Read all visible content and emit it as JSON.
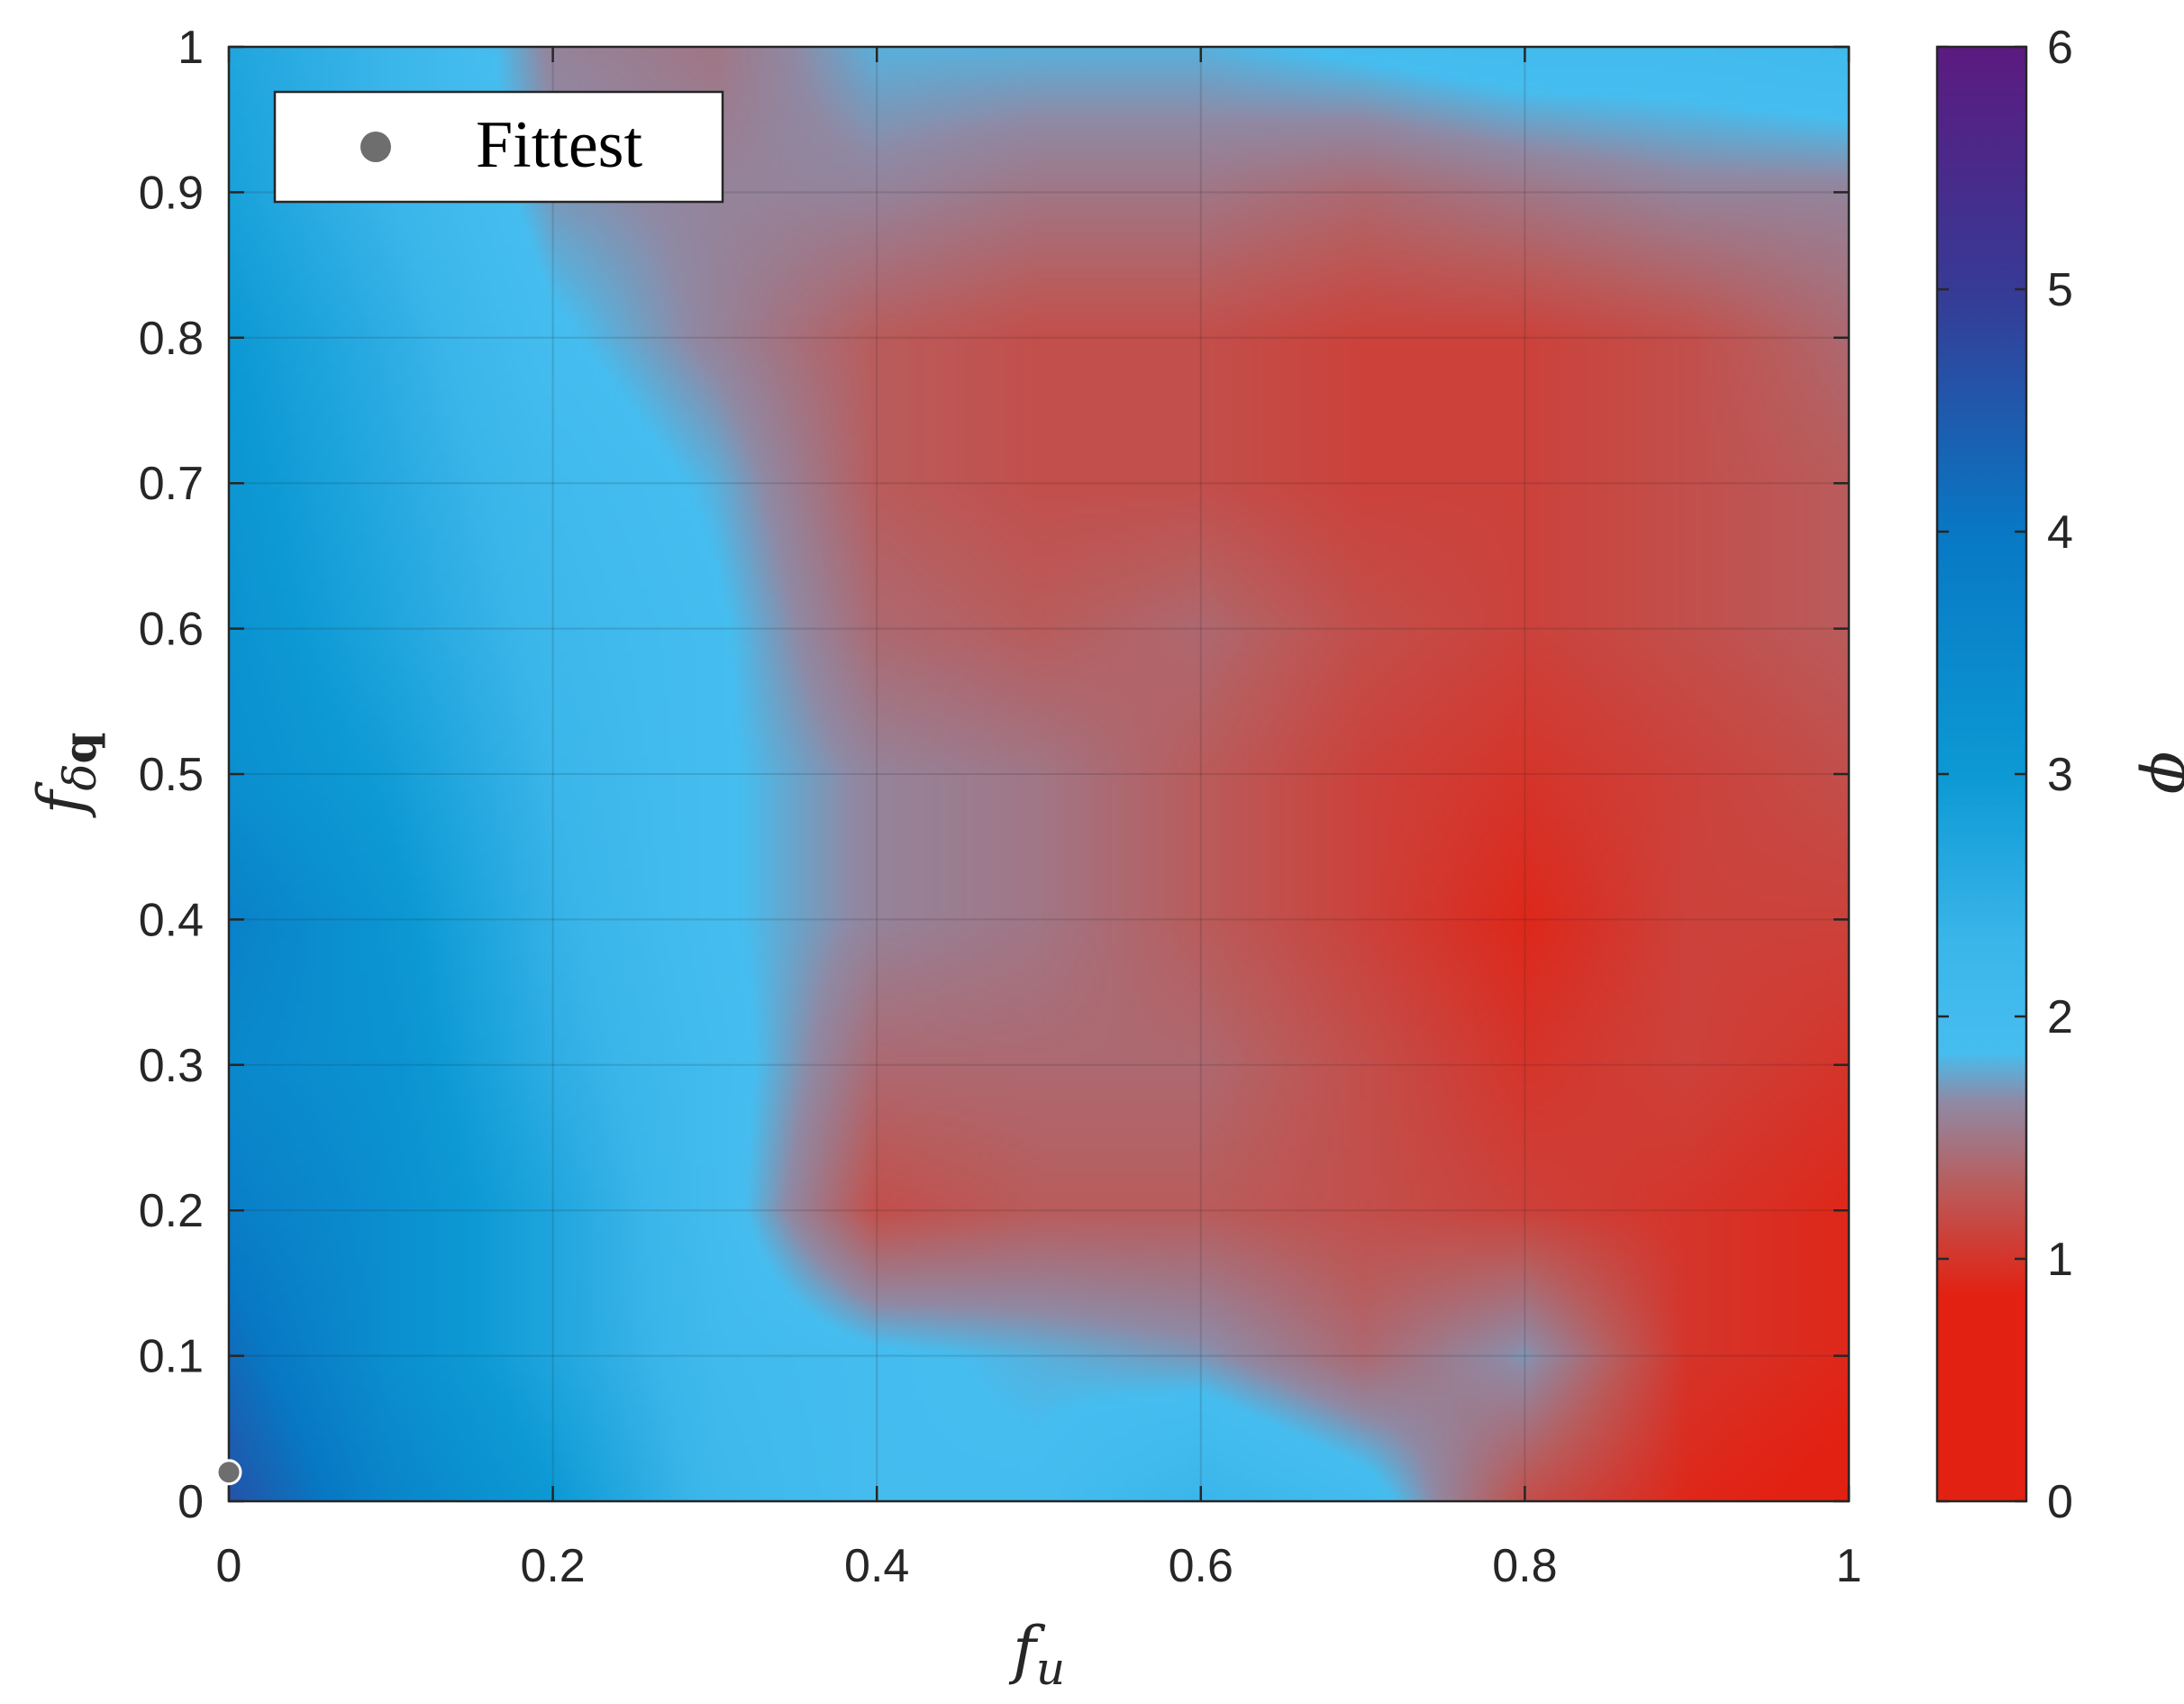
{
  "chart_data": {
    "type": "heatmap",
    "title": "",
    "xlabel": {
      "base": "f",
      "subscript": "u"
    },
    "ylabel": {
      "base": "f",
      "subscript_greek": "δ",
      "subscript_bold": "q"
    },
    "colorbar_label": "ϕ",
    "xlim": [
      0,
      1
    ],
    "ylim": [
      0,
      1
    ],
    "clim": [
      0,
      6
    ],
    "x_ticks": [
      "0",
      "0.2",
      "0.4",
      "0.6",
      "0.8",
      "1"
    ],
    "y_ticks": [
      "0",
      "0.1",
      "0.2",
      "0.3",
      "0.4",
      "0.5",
      "0.6",
      "0.7",
      "0.8",
      "0.9",
      "1"
    ],
    "colorbar_ticks": [
      "0",
      "1",
      "2",
      "3",
      "4",
      "5",
      "6"
    ],
    "grid": true,
    "legend_position": "top-left",
    "legend": [
      {
        "name": "Fittest",
        "marker": "circle",
        "color": "#6e6e6e"
      }
    ],
    "fittest_point": {
      "x": 0.0,
      "y": 0.02
    },
    "colormap": [
      {
        "value": 0.0,
        "color": "#e32112"
      },
      {
        "value": 0.85,
        "color": "#e32112"
      },
      {
        "value": 1.3,
        "color": "#b95c5c"
      },
      {
        "value": 1.65,
        "color": "#8f8aa5"
      },
      {
        "value": 1.85,
        "color": "#46bdef"
      },
      {
        "value": 2.3,
        "color": "#3bb6ea"
      },
      {
        "value": 3.0,
        "color": "#0c99d4"
      },
      {
        "value": 4.0,
        "color": "#0878c4"
      },
      {
        "value": 5.0,
        "color": "#373a95"
      },
      {
        "value": 6.0,
        "color": "#5c1a80"
      }
    ],
    "z_grid_x": [
      0,
      0.1,
      0.2,
      0.3,
      0.4,
      0.5,
      0.6,
      0.7,
      0.8,
      0.9,
      1.0
    ],
    "z_grid_y": [
      0,
      0.1,
      0.2,
      0.3,
      0.4,
      0.5,
      0.6,
      0.7,
      0.8,
      0.9,
      1.0
    ],
    "z_values": [
      [
        4.6,
        3.6,
        3.0,
        2.2,
        1.9,
        1.9,
        2.3,
        2.0,
        1.2,
        0.9,
        0.8
      ],
      [
        4.2,
        3.3,
        2.7,
        2.1,
        1.9,
        1.8,
        1.7,
        1.4,
        1.7,
        1.0,
        0.9
      ],
      [
        3.8,
        3.3,
        2.7,
        2.0,
        1.2,
        1.3,
        1.3,
        1.2,
        1.1,
        1.0,
        0.9
      ],
      [
        3.5,
        3.2,
        2.5,
        2.0,
        1.4,
        1.4,
        1.4,
        1.2,
        1.0,
        1.1,
        1.0
      ],
      [
        3.7,
        3.1,
        2.4,
        1.9,
        1.6,
        1.5,
        1.3,
        1.1,
        0.9,
        1.1,
        1.1
      ],
      [
        3.3,
        2.9,
        2.3,
        1.9,
        1.6,
        1.5,
        1.3,
        1.1,
        1.0,
        1.1,
        1.2
      ],
      [
        3.2,
        2.7,
        2.2,
        1.9,
        1.4,
        1.3,
        1.4,
        1.2,
        1.1,
        1.2,
        1.3
      ],
      [
        3.1,
        2.6,
        2.1,
        1.8,
        1.3,
        1.2,
        1.2,
        1.1,
        1.1,
        1.2,
        1.3
      ],
      [
        3.0,
        2.5,
        1.9,
        1.6,
        1.3,
        1.2,
        1.2,
        1.1,
        1.1,
        1.2,
        1.4
      ],
      [
        2.8,
        2.3,
        1.7,
        1.6,
        1.6,
        1.5,
        1.5,
        1.4,
        1.5,
        1.6,
        1.6
      ],
      [
        2.7,
        2.3,
        1.6,
        1.5,
        1.8,
        1.8,
        1.8,
        1.9,
        2.0,
        2.0,
        2.1
      ]
    ]
  }
}
